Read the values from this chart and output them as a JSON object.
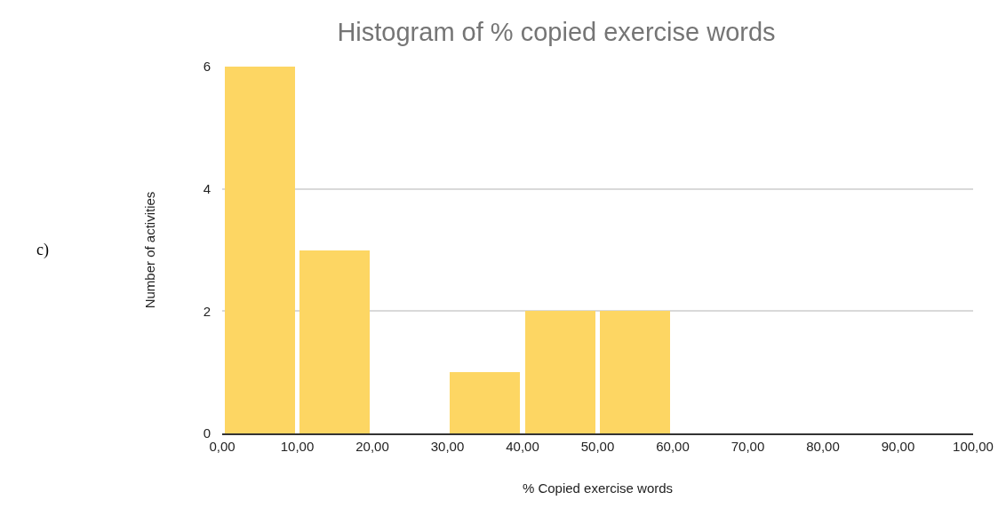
{
  "chart_data": {
    "type": "histogram",
    "title": "Histogram of % copied exercise words",
    "xlabel": "% Copied exercise words",
    "ylabel": "Number of activities",
    "bins": [
      0,
      10,
      20,
      30,
      40,
      50,
      60,
      70,
      80,
      90,
      100
    ],
    "values": [
      6,
      3,
      0,
      1,
      2,
      2,
      0,
      0,
      0,
      0
    ],
    "color": "#fdd663",
    "xlim": [
      0,
      100
    ],
    "xticks": [
      {
        "value": 0,
        "label": "0,00"
      },
      {
        "value": 10,
        "label": "10,00"
      },
      {
        "value": 20,
        "label": "20,00"
      },
      {
        "value": 30,
        "label": "30,00"
      },
      {
        "value": 40,
        "label": "40,00"
      },
      {
        "value": 50,
        "label": "50,00"
      },
      {
        "value": 60,
        "label": "60,00"
      },
      {
        "value": 70,
        "label": "70,00"
      },
      {
        "value": 80,
        "label": "80,00"
      },
      {
        "value": 90,
        "label": "90,00"
      },
      {
        "value": 100,
        "label": "100,00"
      }
    ],
    "ylim": [
      0,
      6
    ],
    "yticks": [
      0,
      2,
      4,
      6
    ],
    "grid": "y",
    "annotations": [
      "c)"
    ]
  }
}
